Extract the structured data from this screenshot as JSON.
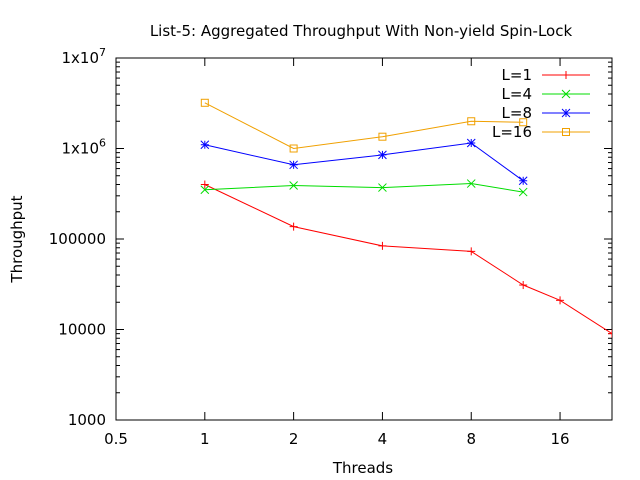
{
  "chart_data": {
    "type": "line",
    "title": "List-5: Aggregated Throughput With Non-yield Spin-Lock",
    "xlabel": "Threads",
    "ylabel": "Throughput",
    "x_scale": "log2",
    "y_scale": "log10",
    "xlim": [
      0.5,
      24
    ],
    "ylim": [
      1000,
      10000000
    ],
    "x_ticks": [
      {
        "value": 0.5,
        "label": "0.5"
      },
      {
        "value": 1,
        "label": "1"
      },
      {
        "value": 2,
        "label": "2"
      },
      {
        "value": 4,
        "label": "4"
      },
      {
        "value": 8,
        "label": "8"
      },
      {
        "value": 16,
        "label": "16"
      }
    ],
    "y_ticks": [
      {
        "value": 1000,
        "label": "1000"
      },
      {
        "value": 10000,
        "label": "10000"
      },
      {
        "value": 100000,
        "label": "100000"
      },
      {
        "value": 1000000,
        "label": "1x10",
        "exp": "6"
      },
      {
        "value": 10000000,
        "label": "1x10",
        "exp": "7"
      }
    ],
    "legend_position": "top-right",
    "grid": false,
    "series": [
      {
        "name": "L=1",
        "color": "#ff0000",
        "marker": "plus",
        "points": [
          [
            1,
            400000
          ],
          [
            2,
            137000
          ],
          [
            4,
            84000
          ],
          [
            8,
            73000
          ],
          [
            12,
            31000
          ],
          [
            16,
            21000
          ],
          [
            24,
            9000
          ]
        ]
      },
      {
        "name": "L=4",
        "color": "#00dd00",
        "marker": "cross",
        "points": [
          [
            1,
            350000
          ],
          [
            2,
            390000
          ],
          [
            4,
            370000
          ],
          [
            8,
            410000
          ],
          [
            12,
            330000
          ]
        ]
      },
      {
        "name": "L=8",
        "color": "#0000ff",
        "marker": "star",
        "points": [
          [
            1,
            1100000
          ],
          [
            2,
            660000
          ],
          [
            4,
            850000
          ],
          [
            8,
            1150000
          ],
          [
            12,
            440000
          ]
        ]
      },
      {
        "name": "L=16",
        "color": "#f0a000",
        "marker": "square",
        "points": [
          [
            1,
            3200000
          ],
          [
            2,
            1000000
          ],
          [
            4,
            1350000
          ],
          [
            8,
            2000000
          ],
          [
            12,
            1950000
          ]
        ]
      }
    ]
  }
}
